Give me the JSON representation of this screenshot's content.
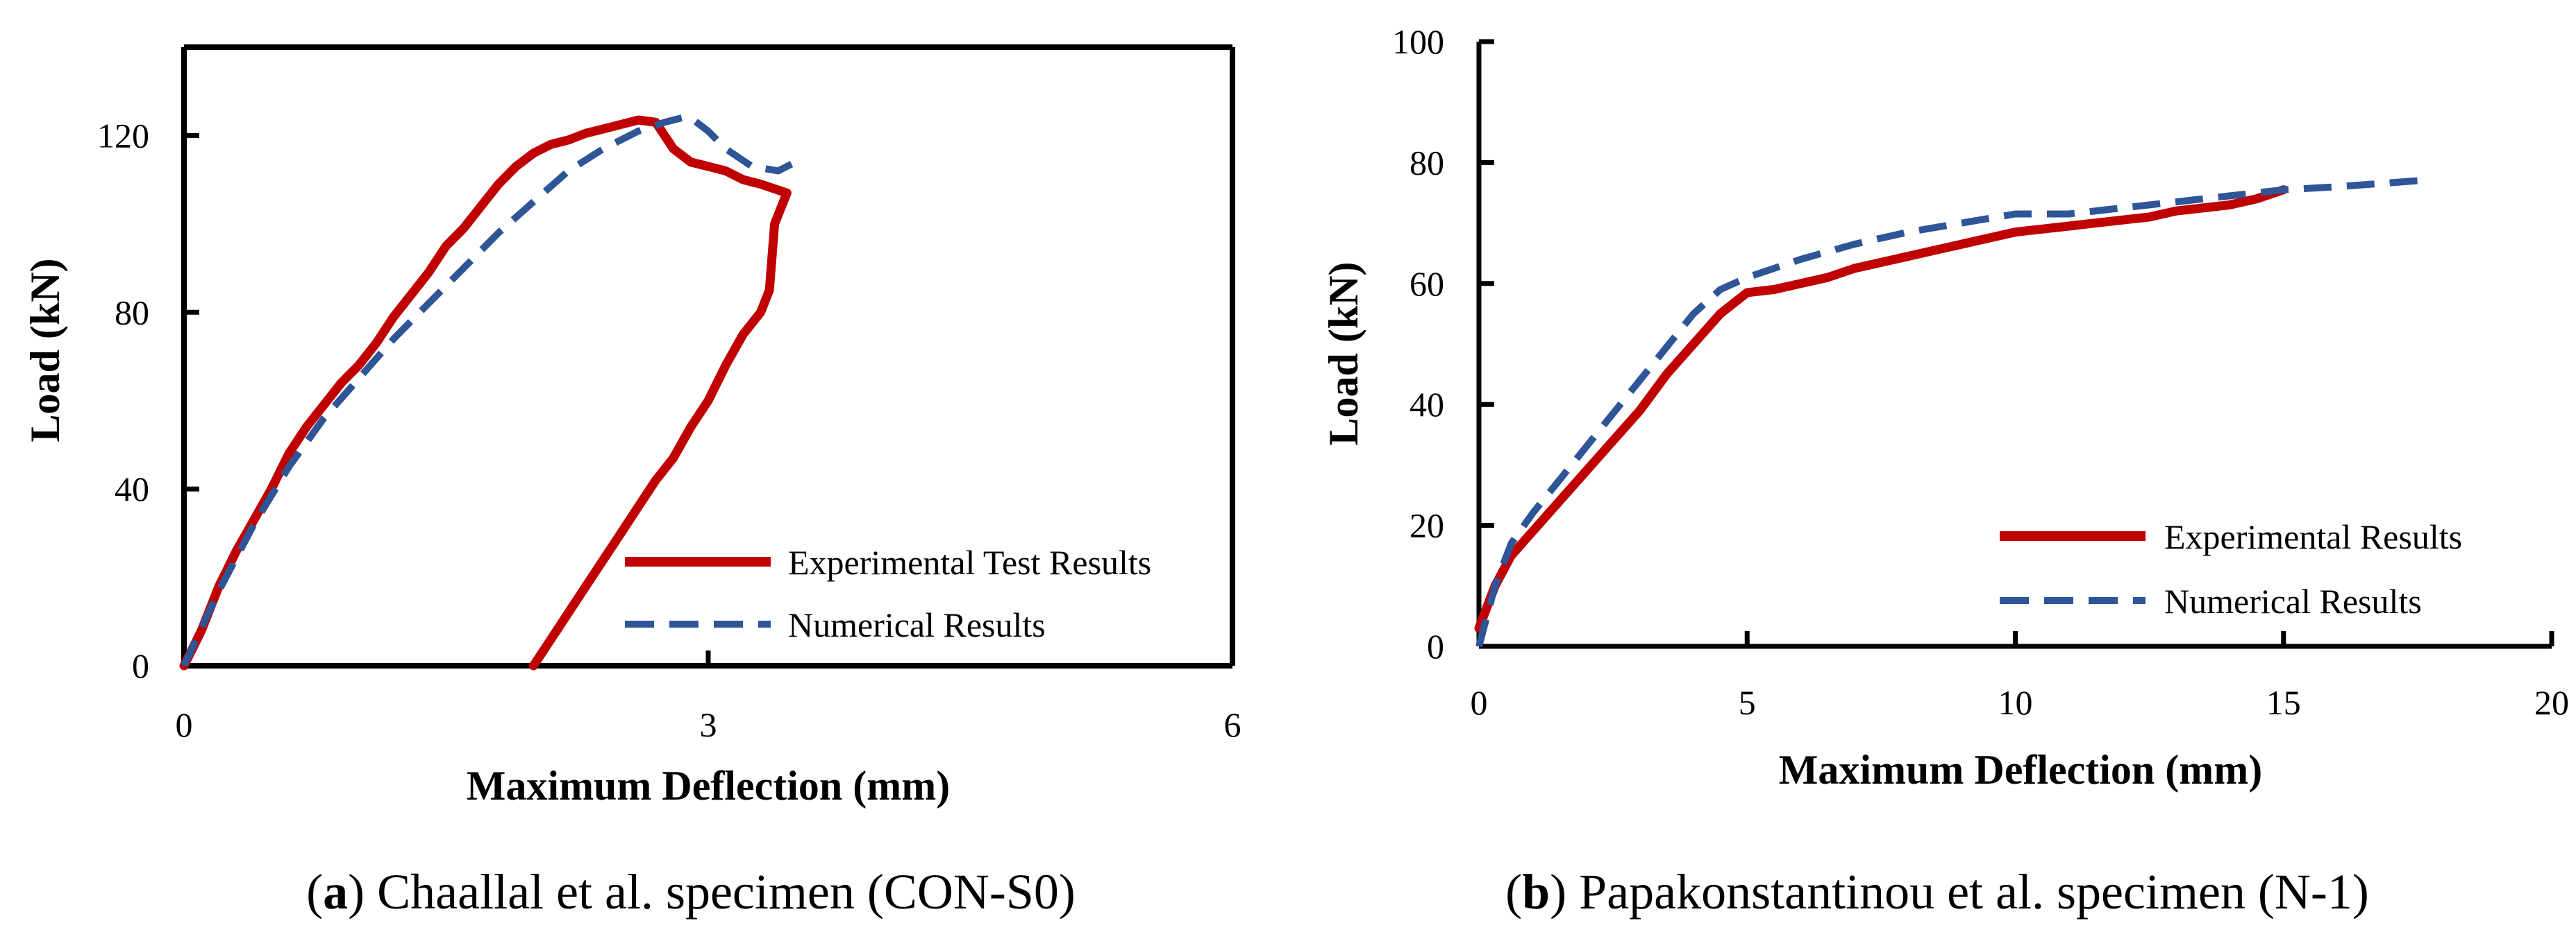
{
  "chart_data": [
    {
      "id": "a",
      "type": "line",
      "caption_letter": "a",
      "caption_text": " Chaallal et al. specimen (CON-S0)",
      "xlabel": "Maximum Deflection (mm)",
      "ylabel": "Load (kN)",
      "xlim": [
        0,
        6
      ],
      "ylim": [
        0,
        140
      ],
      "xticks": [
        0,
        3,
        6
      ],
      "yticks": [
        0,
        40,
        80,
        120
      ],
      "legend": {
        "position": "bottom-right"
      },
      "series": [
        {
          "name": "Experimental Test Results",
          "color": "#C00000",
          "style": "solid",
          "x": [
            0,
            0.1,
            0.2,
            0.3,
            0.4,
            0.5,
            0.6,
            0.7,
            0.8,
            0.9,
            1.0,
            1.1,
            1.2,
            1.3,
            1.4,
            1.5,
            1.6,
            1.7,
            1.8,
            1.9,
            2.0,
            2.1,
            2.2,
            2.3,
            2.4,
            2.5,
            2.6,
            2.7,
            2.8,
            2.9,
            3.0,
            3.1,
            3.2,
            3.3,
            3.45,
            3.38,
            3.36,
            3.35,
            3.3,
            3.2,
            3.1,
            3.0,
            2.9,
            2.8,
            2.7,
            2.6,
            2.5,
            2.4,
            2.3,
            2.2,
            2.1,
            2.0
          ],
          "y": [
            0,
            8,
            18,
            26,
            33,
            40,
            48,
            54,
            59,
            64,
            68,
            73,
            79,
            84,
            89,
            95,
            99,
            104,
            109,
            113,
            116,
            118,
            119,
            120.5,
            121.5,
            122.5,
            123.5,
            123,
            117,
            114,
            113,
            112,
            110,
            109,
            107,
            100,
            90,
            85,
            80,
            75,
            68,
            60,
            54,
            47,
            42,
            36,
            30,
            24,
            18,
            12,
            6,
            0
          ]
        },
        {
          "name": "Numerical Results",
          "color": "#2E5597",
          "style": "dashed",
          "x": [
            0,
            0.2,
            0.4,
            0.6,
            0.8,
            1.0,
            1.2,
            1.4,
            1.6,
            1.8,
            2.0,
            2.2,
            2.4,
            2.6,
            2.75,
            2.85,
            2.9,
            3.0,
            3.1,
            3.25,
            3.4,
            3.5
          ],
          "y": [
            0,
            17,
            32,
            45,
            56,
            65,
            74,
            82,
            90,
            98,
            105,
            112,
            117,
            121,
            123,
            124,
            124,
            121,
            117,
            113,
            112,
            114
          ]
        }
      ]
    },
    {
      "id": "b",
      "type": "line",
      "caption_letter": "b",
      "caption_text": " Papakonstantinou et al. specimen (N-1)",
      "xlabel": "Maximum Deflection (mm)",
      "ylabel": "Load (kN)",
      "xlim": [
        0,
        20
      ],
      "ylim": [
        0,
        100
      ],
      "xticks": [
        0,
        5,
        10,
        15,
        20
      ],
      "yticks": [
        0,
        20,
        40,
        60,
        80,
        100
      ],
      "legend": {
        "position": "bottom-right"
      },
      "series": [
        {
          "name": "Experimental Results",
          "color": "#C00000",
          "style": "solid",
          "x": [
            0,
            0.3,
            0.6,
            1.0,
            1.5,
            2.0,
            2.5,
            3.0,
            3.5,
            4.0,
            4.5,
            5.0,
            5.5,
            6.0,
            6.5,
            7.0,
            7.5,
            8.0,
            8.5,
            9.0,
            9.5,
            10.0,
            10.5,
            11.0,
            11.5,
            12.0,
            12.5,
            13.0,
            13.5,
            14.0,
            14.5,
            15.0
          ],
          "y": [
            3,
            10,
            15,
            19,
            24,
            29,
            34,
            39,
            45,
            50,
            55,
            58.5,
            59,
            60,
            61,
            62.5,
            63.5,
            64.5,
            65.5,
            66.5,
            67.5,
            68.5,
            69,
            69.5,
            70,
            70.5,
            71,
            72,
            72.5,
            73,
            74,
            75.5
          ]
        },
        {
          "name": "Numerical Results",
          "color": "#2E5597",
          "style": "dashed",
          "x": [
            0,
            0.3,
            0.6,
            1.0,
            2.0,
            3.0,
            4.0,
            4.5,
            5.0,
            6.0,
            7.0,
            8.0,
            9.0,
            10.0,
            11.0,
            12.0,
            13.0,
            14.0,
            15.0,
            16.0,
            17.5
          ],
          "y": [
            0,
            10,
            17,
            22,
            33,
            44,
            55,
            59,
            61,
            64,
            66.5,
            68.5,
            70,
            71.5,
            71.5,
            72.5,
            73.5,
            74.5,
            75.5,
            76,
            77
          ]
        }
      ]
    }
  ]
}
